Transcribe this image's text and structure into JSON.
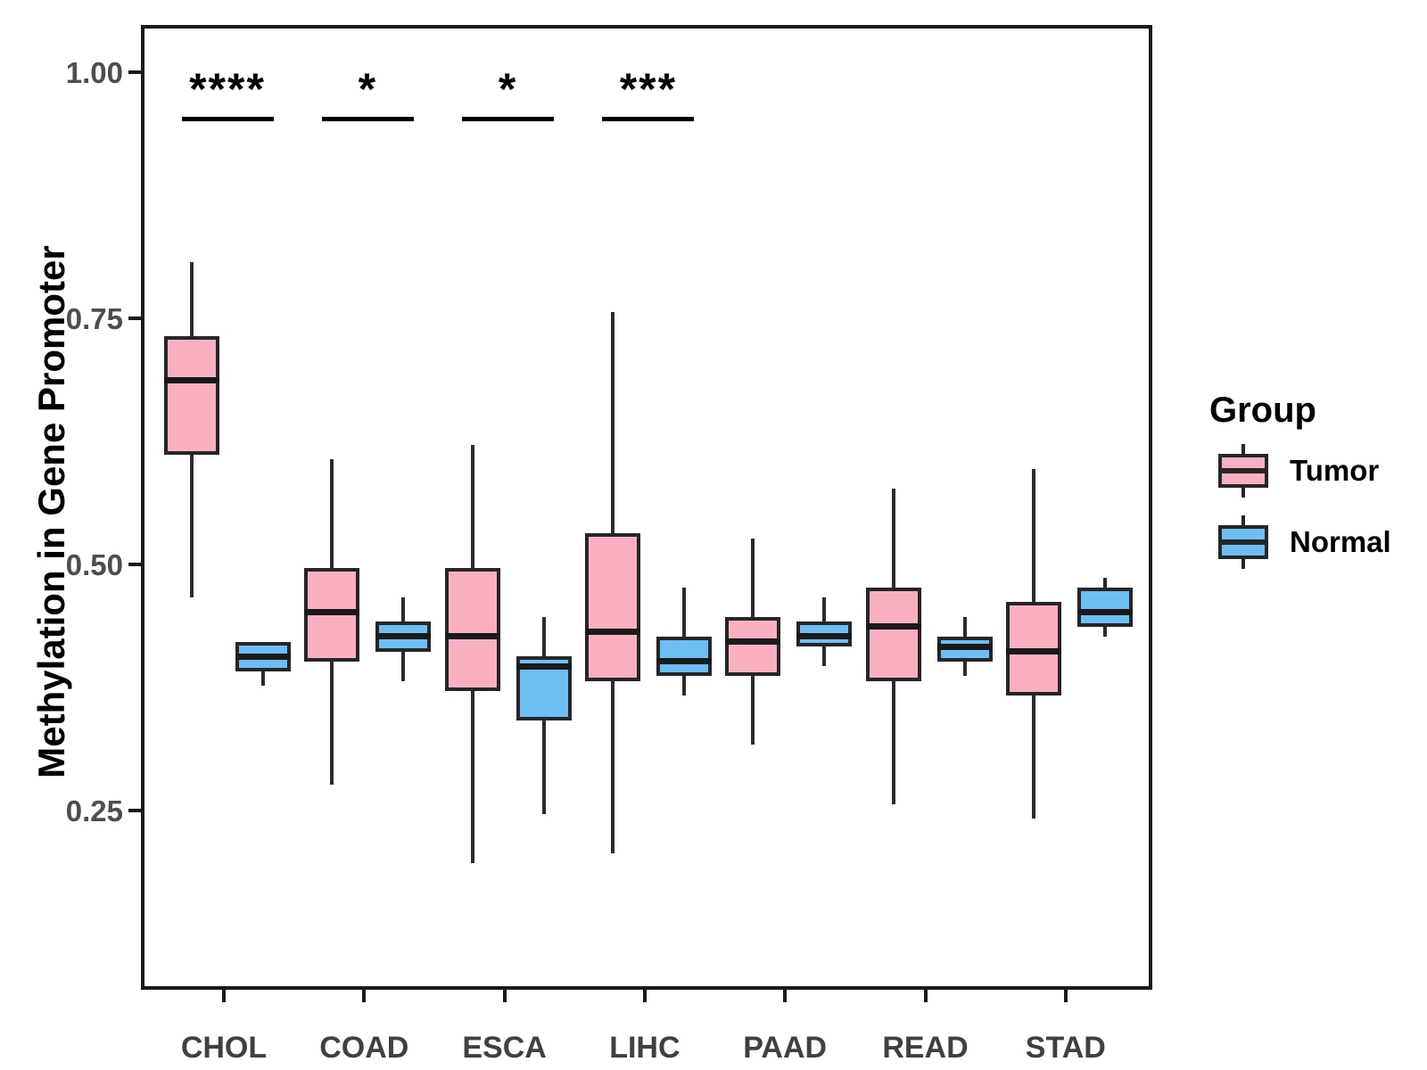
{
  "colors": {
    "tumor_fill": "#F9B0C0",
    "normal_fill": "#6CBEF5",
    "box_border": "#262626",
    "median_line": "#1A1A1A",
    "panel_border": "#1A1A1A",
    "axis_text": "#4D4D4D",
    "background": "#FFFFFF"
  },
  "y_axis": {
    "title": "Methylation in Gene Promoter",
    "tick_labels": [
      "1.00",
      "0.75",
      "0.50",
      "0.25"
    ],
    "tick_values": [
      1.0,
      0.75,
      0.5,
      0.25
    ]
  },
  "x_axis": {
    "categories": [
      "CHOL",
      "COAD",
      "ESCA",
      "LIHC",
      "PAAD",
      "READ",
      "STAD"
    ]
  },
  "legend": {
    "title": "Group",
    "items": [
      {
        "label": "Tumor",
        "color": "#F9B0C0"
      },
      {
        "label": "Normal",
        "color": "#6CBEF5"
      }
    ]
  },
  "significance": [
    {
      "category": "CHOL",
      "label": "****"
    },
    {
      "category": "COAD",
      "label": "*"
    },
    {
      "category": "ESCA",
      "label": "*"
    },
    {
      "category": "LIHC",
      "label": "***"
    }
  ],
  "chart_data": {
    "type": "boxplot",
    "title": "",
    "xlabel": "",
    "ylabel": "Methylation in Gene Promoter",
    "ylim": [
      0.07,
      1.05
    ],
    "grid": false,
    "legend_position": "right",
    "categories": [
      "CHOL",
      "COAD",
      "ESCA",
      "LIHC",
      "PAAD",
      "READ",
      "STAD"
    ],
    "series": [
      {
        "name": "Tumor",
        "color": "#F9B0C0",
        "boxes": [
          {
            "category": "CHOL",
            "min": 0.47,
            "q1": 0.615,
            "median": 0.69,
            "q3": 0.735,
            "max": 0.81
          },
          {
            "category": "COAD",
            "min": 0.28,
            "q1": 0.405,
            "median": 0.455,
            "q3": 0.5,
            "max": 0.61
          },
          {
            "category": "ESCA",
            "min": 0.2,
            "q1": 0.375,
            "median": 0.43,
            "q3": 0.5,
            "max": 0.625
          },
          {
            "category": "LIHC",
            "min": 0.21,
            "q1": 0.385,
            "median": 0.435,
            "q3": 0.535,
            "max": 0.76
          },
          {
            "category": "PAAD",
            "min": 0.32,
            "q1": 0.39,
            "median": 0.425,
            "q3": 0.45,
            "max": 0.53
          },
          {
            "category": "READ",
            "min": 0.26,
            "q1": 0.385,
            "median": 0.44,
            "q3": 0.48,
            "max": 0.58
          },
          {
            "category": "STAD",
            "min": 0.245,
            "q1": 0.37,
            "median": 0.415,
            "q3": 0.465,
            "max": 0.6
          }
        ]
      },
      {
        "name": "Normal",
        "color": "#6CBEF5",
        "boxes": [
          {
            "category": "CHOL",
            "min": 0.38,
            "q1": 0.395,
            "median": 0.41,
            "q3": 0.425,
            "max": 0.425
          },
          {
            "category": "COAD",
            "min": 0.385,
            "q1": 0.415,
            "median": 0.43,
            "q3": 0.445,
            "max": 0.47
          },
          {
            "category": "ESCA",
            "min": 0.25,
            "q1": 0.345,
            "median": 0.4,
            "q3": 0.41,
            "max": 0.45
          },
          {
            "category": "LIHC",
            "min": 0.37,
            "q1": 0.39,
            "median": 0.405,
            "q3": 0.43,
            "max": 0.48
          },
          {
            "category": "PAAD",
            "min": 0.4,
            "q1": 0.42,
            "median": 0.43,
            "q3": 0.445,
            "max": 0.47
          },
          {
            "category": "READ",
            "min": 0.39,
            "q1": 0.405,
            "median": 0.42,
            "q3": 0.43,
            "max": 0.45
          },
          {
            "category": "STAD",
            "min": 0.43,
            "q1": 0.44,
            "median": 0.455,
            "q3": 0.48,
            "max": 0.49
          }
        ]
      }
    ]
  }
}
